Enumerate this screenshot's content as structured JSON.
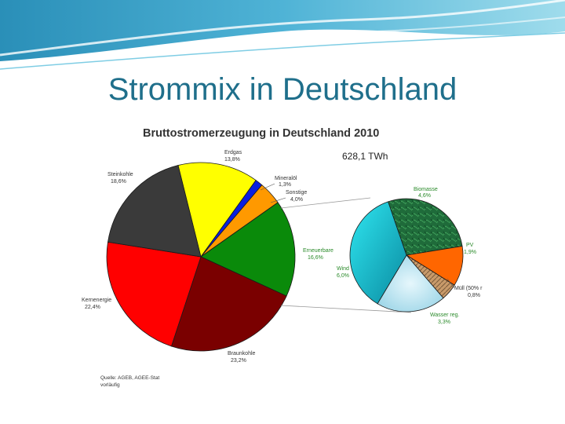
{
  "slide": {
    "title": "Strommix in Deutschland"
  },
  "chart_data": [
    {
      "type": "pie",
      "title": "Bruttostromerzeugung in Deutschland 2010",
      "subtitle": "628,1 TWh",
      "source_line1": "Quelle: AGEB, AGEE-Stat",
      "source_line2": "vorläufig",
      "slices": [
        {
          "name": "Erdgas",
          "value": 13.8,
          "value_label": "13,8%",
          "color": "#ffff00"
        },
        {
          "name": "Mineralöl",
          "value": 1.3,
          "value_label": "1,3%",
          "color": "#0a1fe0"
        },
        {
          "name": "Sonstige",
          "value": 4.0,
          "value_label": "4,0%",
          "color": "#ff9900"
        },
        {
          "name": "Erneuerbare",
          "value": 16.6,
          "value_label": "16,6%",
          "color": "#0a8a0a"
        },
        {
          "name": "Braunkohle",
          "value": 23.2,
          "value_label": "23,2%",
          "color": "#7a0000"
        },
        {
          "name": "Kernenergie",
          "value": 22.4,
          "value_label": "22,4%",
          "color": "#ff0000"
        },
        {
          "name": "Steinkohle",
          "value": 18.6,
          "value_label": "18,6%",
          "color": "#3a3a3a"
        }
      ]
    },
    {
      "type": "pie",
      "title": "",
      "slices": [
        {
          "name": "Biomasse",
          "value": 4.6,
          "value_label": "4,6%",
          "color": "#1f6b3a"
        },
        {
          "name": "PV",
          "value": 1.9,
          "value_label": "1,9%",
          "color": "#ff6600"
        },
        {
          "name": "Müll (50% r",
          "value": 0.8,
          "value_label": "0,8%",
          "color": "#c89a6a"
        },
        {
          "name": "Wasser reg.",
          "value": 3.3,
          "value_label": "3,3%",
          "color": "#b8e4f0"
        },
        {
          "name": "Wind",
          "value": 6.0,
          "value_label": "6,0%",
          "color": "#1fc4d4"
        }
      ]
    }
  ]
}
